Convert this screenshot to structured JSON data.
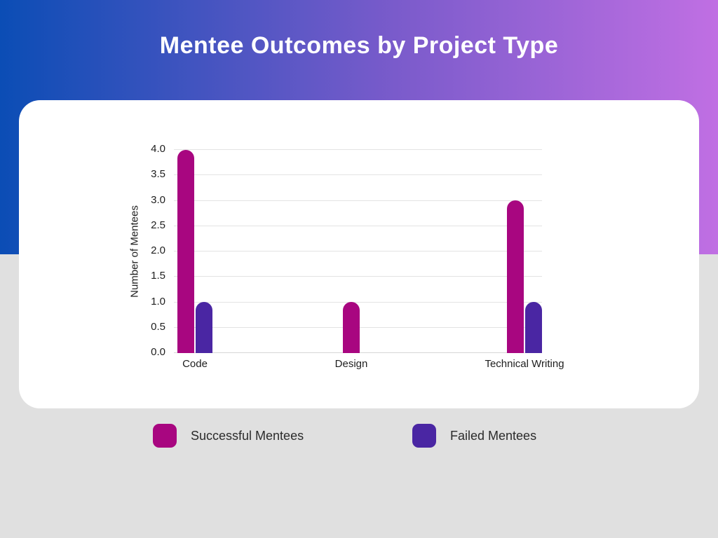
{
  "page": {
    "title": "Mentee Outcomes by Project Type",
    "background_color": "#E0E0E0",
    "header_gradient_from": "#0B4DB5",
    "header_gradient_to": "#C06FE3",
    "card_color": "#FFFFFF"
  },
  "chart_data": {
    "type": "bar",
    "title": "Mentee Outcomes by Project Type",
    "categories": [
      "Code",
      "Design",
      "Technical Writing"
    ],
    "series": [
      {
        "name": "Successful Mentees",
        "color": "#A80680",
        "values": [
          4,
          1,
          3
        ]
      },
      {
        "name": "Failed Mentees",
        "color": "#4A26A3",
        "values": [
          1,
          0,
          1
        ]
      }
    ],
    "xlabel": "",
    "ylabel": "Number of Mentees",
    "ylim": [
      0,
      4
    ],
    "ytick_step": 0.5,
    "ytick_labels": [
      "0.0",
      "0.5",
      "1.0",
      "1.5",
      "2.0",
      "2.5",
      "3.0",
      "3.5",
      "4.0"
    ],
    "grid": "horizontal-only",
    "legend_position": "bottom"
  },
  "legend": {
    "items": [
      {
        "label": "Successful Mentees",
        "color": "#A80680"
      },
      {
        "label": "Failed Mentees",
        "color": "#4A26A3"
      }
    ]
  }
}
